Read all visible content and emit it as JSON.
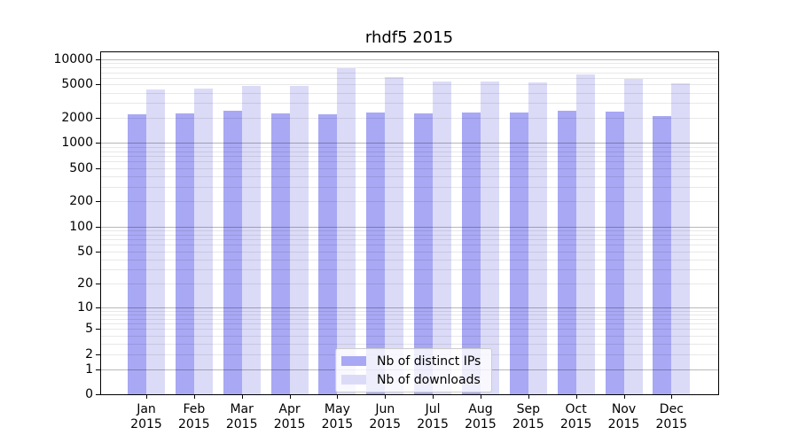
{
  "title": "rhdf5 2015",
  "chart_data": {
    "type": "bar",
    "title": "rhdf5 2015",
    "categories": [
      "Jan",
      "Feb",
      "Mar",
      "Apr",
      "May",
      "Jun",
      "Jul",
      "Aug",
      "Sep",
      "Oct",
      "Nov",
      "Dec"
    ],
    "x_year_label": "2015",
    "series": [
      {
        "name": "Nb of distinct IPs",
        "color": "#a8a8f4",
        "values": [
          2200,
          2270,
          2420,
          2240,
          2200,
          2330,
          2240,
          2290,
          2310,
          2440,
          2350,
          2110
        ]
      },
      {
        "name": "Nb of downloads",
        "color": "#dbdbf8",
        "values": [
          4380,
          4520,
          4870,
          4870,
          7750,
          6080,
          5420,
          5460,
          5300,
          6590,
          5920,
          5120
        ]
      }
    ],
    "y_ticks": [
      0,
      1,
      2,
      5,
      10,
      20,
      50,
      100,
      200,
      500,
      1000,
      2000,
      5000,
      10000
    ],
    "y_scale": "log10(value+1)",
    "ylim": [
      0,
      11800
    ],
    "grid": {
      "major_at": "powers of 10",
      "minor_at": "2-9 per decade",
      "drawn_over_bars": true
    },
    "legend_position": "lower center inside plot"
  },
  "colors": {
    "background": "#ffffff",
    "axis": "#000000",
    "grid_major": "rgba(0,0,0,0.28)",
    "grid_minor": "rgba(0,0,0,0.09)",
    "distinct_ips_bar": "#a8a8f4",
    "downloads_bar": "#dbdbf8",
    "legend_border": "#cccccc"
  }
}
